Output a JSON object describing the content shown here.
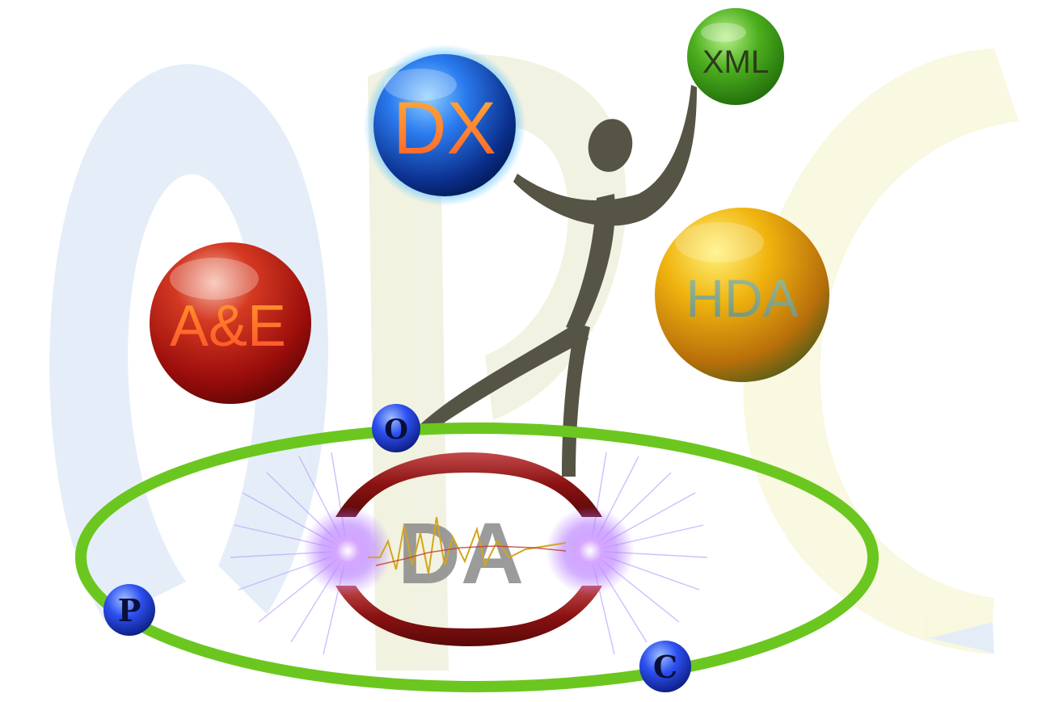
{
  "logo": {
    "background_letters": "opc",
    "spheres": {
      "dx": "DX",
      "xml": "XML",
      "hda": "HDA",
      "ae": "A&E"
    },
    "center_emblem": "DA",
    "ring_beads": {
      "o": "O",
      "p": "P",
      "c": "C"
    },
    "colors": {
      "ring": "#6bc71f",
      "dx_sphere": "#1f5bd6",
      "xml_sphere": "#4aa91e",
      "hda_sphere": "#e0a814",
      "ae_sphere": "#b0120f",
      "figure": "#565444",
      "emblem_arc": "#8a1212",
      "glow": "#c98bff",
      "bead": "#1e3bd8"
    }
  }
}
